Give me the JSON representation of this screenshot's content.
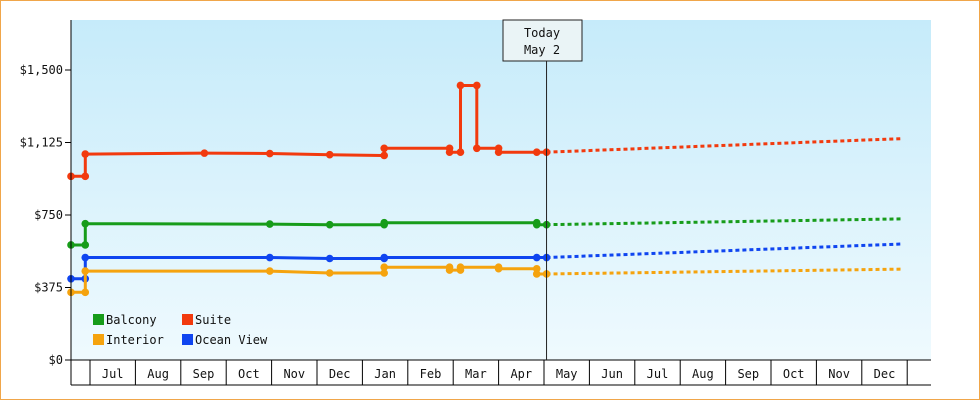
{
  "chart_data": {
    "type": "line",
    "title": "",
    "xlabel": "",
    "ylabel": "",
    "ylim": [
      0,
      1500
    ],
    "y_ticks": [
      {
        "value": 0,
        "label": "$0"
      },
      {
        "value": 375,
        "label": "$375"
      },
      {
        "value": 750,
        "label": "$750"
      },
      {
        "value": 1125,
        "label": "$1,125"
      },
      {
        "value": 1500,
        "label": "$1,500"
      }
    ],
    "x_tick_labels": [
      "Jul",
      "Aug",
      "Sep",
      "Oct",
      "Nov",
      "Dec",
      "Jan",
      "Feb",
      "Mar",
      "Apr",
      "May",
      "Jun",
      "Jul",
      "Aug",
      "Sep",
      "Oct",
      "Nov",
      "Dec"
    ],
    "today": {
      "line1": "Today",
      "line2": "May 2",
      "date": 2026.338
    },
    "x_range": [
      2025.42,
      2026.99
    ],
    "grid": false,
    "legend_position": "bottom-left",
    "background": {
      "top": "#c6ebfa",
      "bottom": "#effafe"
    },
    "series": [
      {
        "name": "Suite",
        "color": "#f23a0e",
        "points": [
          [
            2025.42,
            950
          ],
          [
            2025.48,
            950
          ],
          [
            2025.48,
            1065
          ],
          [
            2025.71,
            1070
          ],
          [
            2025.83,
            1068
          ],
          [
            2025.94,
            1062
          ],
          [
            2026.04,
            1058
          ],
          [
            2026.04,
            1095
          ],
          [
            2026.16,
            1095
          ],
          [
            2026.16,
            1075
          ],
          [
            2026.18,
            1075
          ],
          [
            2026.18,
            1420
          ],
          [
            2026.21,
            1420
          ],
          [
            2026.21,
            1095
          ],
          [
            2026.25,
            1095
          ],
          [
            2026.25,
            1075
          ],
          [
            2026.32,
            1075
          ],
          [
            2026.338,
            1075
          ]
        ],
        "forecast": [
          [
            2026.338,
            1075
          ],
          [
            2026.99,
            1145
          ]
        ]
      },
      {
        "name": "Balcony",
        "color": "#179c1a",
        "points": [
          [
            2025.42,
            595
          ],
          [
            2025.48,
            595
          ],
          [
            2025.48,
            705
          ],
          [
            2025.83,
            703
          ],
          [
            2025.94,
            700
          ],
          [
            2026.04,
            700
          ],
          [
            2026.04,
            710
          ],
          [
            2026.32,
            710
          ],
          [
            2026.32,
            700
          ],
          [
            2026.338,
            700
          ]
        ],
        "forecast": [
          [
            2026.338,
            700
          ],
          [
            2026.99,
            730
          ]
        ]
      },
      {
        "name": "Ocean View",
        "color": "#0f45f0",
        "points": [
          [
            2025.42,
            420
          ],
          [
            2025.48,
            420
          ],
          [
            2025.48,
            530
          ],
          [
            2025.83,
            530
          ],
          [
            2025.94,
            525
          ],
          [
            2026.04,
            525
          ],
          [
            2026.04,
            530
          ],
          [
            2026.32,
            530
          ],
          [
            2026.338,
            530
          ]
        ],
        "forecast": [
          [
            2026.338,
            530
          ],
          [
            2026.99,
            600
          ]
        ]
      },
      {
        "name": "Interior",
        "color": "#f5a30e",
        "points": [
          [
            2025.42,
            350
          ],
          [
            2025.48,
            350
          ],
          [
            2025.48,
            460
          ],
          [
            2025.83,
            460
          ],
          [
            2025.94,
            450
          ],
          [
            2026.04,
            450
          ],
          [
            2026.04,
            480
          ],
          [
            2026.16,
            480
          ],
          [
            2026.16,
            465
          ],
          [
            2026.18,
            465
          ],
          [
            2026.18,
            480
          ],
          [
            2026.25,
            480
          ],
          [
            2026.25,
            472
          ],
          [
            2026.32,
            472
          ],
          [
            2026.32,
            445
          ],
          [
            2026.338,
            445
          ]
        ],
        "forecast": [
          [
            2026.338,
            445
          ],
          [
            2026.99,
            470
          ]
        ]
      }
    ],
    "legend": [
      {
        "name": "Balcony",
        "color": "#179c1a"
      },
      {
        "name": "Suite",
        "color": "#f23a0e"
      },
      {
        "name": "Interior",
        "color": "#f5a30e"
      },
      {
        "name": "Ocean View",
        "color": "#0f45f0"
      }
    ]
  }
}
